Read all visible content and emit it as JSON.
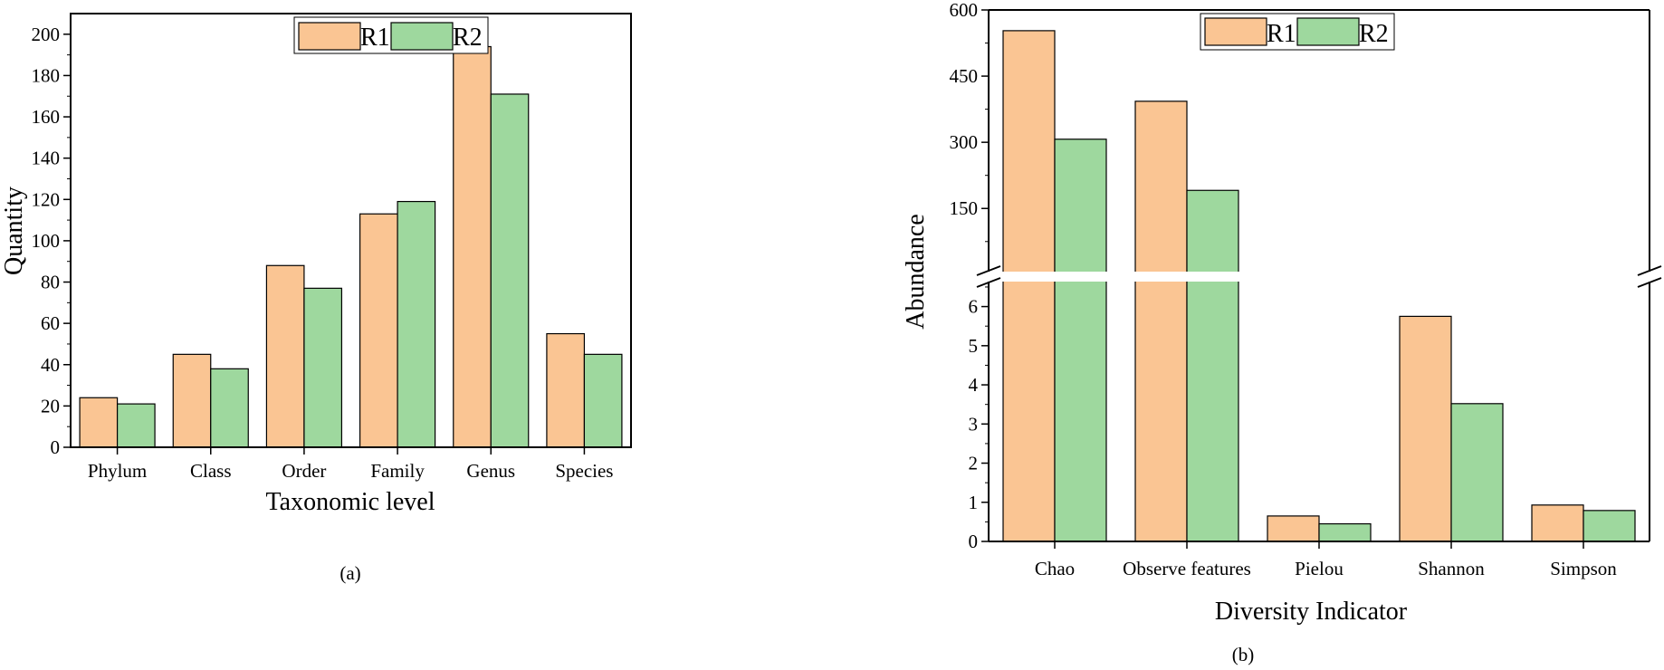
{
  "panels": {
    "a": {
      "caption": "(a)"
    },
    "b": {
      "caption": "(b)"
    }
  },
  "colors": {
    "R1": "#fac593",
    "R2": "#9ed89e",
    "stroke": "#000000",
    "background": "#ffffff"
  },
  "chart_data": [
    {
      "type": "bar",
      "title": "",
      "xlabel": "Taxonomic level",
      "ylabel": "Quantity",
      "categories": [
        "Phylum",
        "Class",
        "Order",
        "Family",
        "Genus",
        "Species"
      ],
      "series": [
        {
          "name": "R1",
          "values": [
            24,
            45,
            88,
            113,
            194,
            55
          ]
        },
        {
          "name": "R2",
          "values": [
            21,
            38,
            77,
            119,
            171,
            45
          ]
        }
      ],
      "ylim": [
        0,
        210
      ],
      "yticks": [
        0,
        20,
        40,
        60,
        80,
        100,
        120,
        140,
        160,
        180,
        200
      ],
      "legend": "top-center",
      "grid": false
    },
    {
      "type": "bar",
      "title": "",
      "xlabel": "Diversity Indicator",
      "ylabel": "Abundance",
      "categories": [
        "Chao",
        "Observe features",
        "Pielou",
        "Shannon",
        "Simpson"
      ],
      "series": [
        {
          "name": "R1",
          "values": [
            553,
            393,
            0.65,
            5.75,
            0.93
          ]
        },
        {
          "name": "R2",
          "values": [
            307,
            191,
            0.45,
            3.52,
            0.79
          ]
        }
      ],
      "axis_break": {
        "lower_range": [
          0,
          6.8
        ],
        "upper_range": [
          6.8,
          600
        ]
      },
      "yticks_lower": [
        0,
        1,
        2,
        3,
        4,
        5,
        6
      ],
      "yticks_upper": [
        150,
        300,
        450,
        600
      ],
      "legend": "top-center",
      "grid": false
    }
  ]
}
